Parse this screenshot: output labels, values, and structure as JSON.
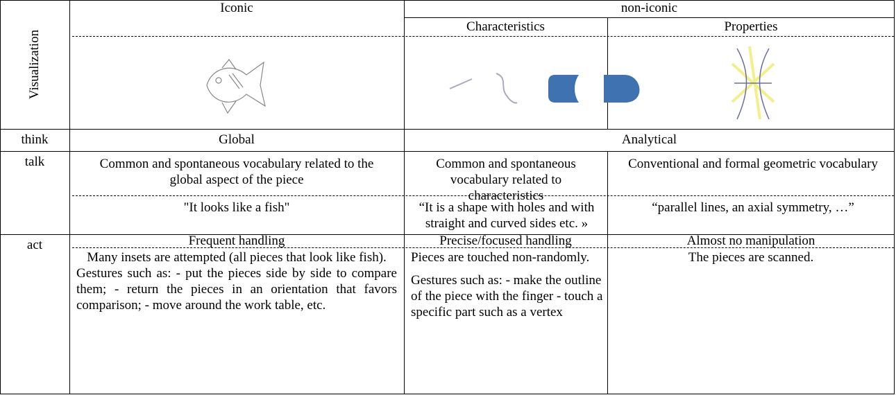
{
  "table": {
    "row_labels": [
      "Visualization",
      "think",
      "talk",
      "act"
    ],
    "header": {
      "iconic": "Iconic",
      "non_iconic": "non-iconic",
      "characteristics": "Characteristics",
      "properties": "Properties"
    },
    "think": [
      "Global",
      "Analytical"
    ],
    "talk": {
      "description": [
        "Common and spontaneous vocabulary related to the global aspect of the piece",
        "Common and spontaneous vocabulary related to characteristics",
        "Conventional and formal geometric vocabulary"
      ],
      "example": [
        "\"It looks like a fish\"",
        "“It is a shape with holes and with straight and curved sides etc. »",
        "“parallel lines, an axial symmetry, …”"
      ]
    },
    "act": {
      "handling": [
        "Frequent handling",
        "Precise/focused handling",
        "Almost no manipulation"
      ],
      "details": [
        [
          "Many insets are attempted (all pieces that look like fish).",
          "Gestures such as: - put the pieces side by side to compare them; - return the pieces in an orientation that favors comparison; - move around the work table, etc."
        ],
        [
          "Pieces are touched non-randomly.",
          "Gestures such as: - make the outline of the piece with the finger - touch a specific part such as a vertex"
        ],
        [
          "The pieces are scanned."
        ]
      ]
    }
  }
}
